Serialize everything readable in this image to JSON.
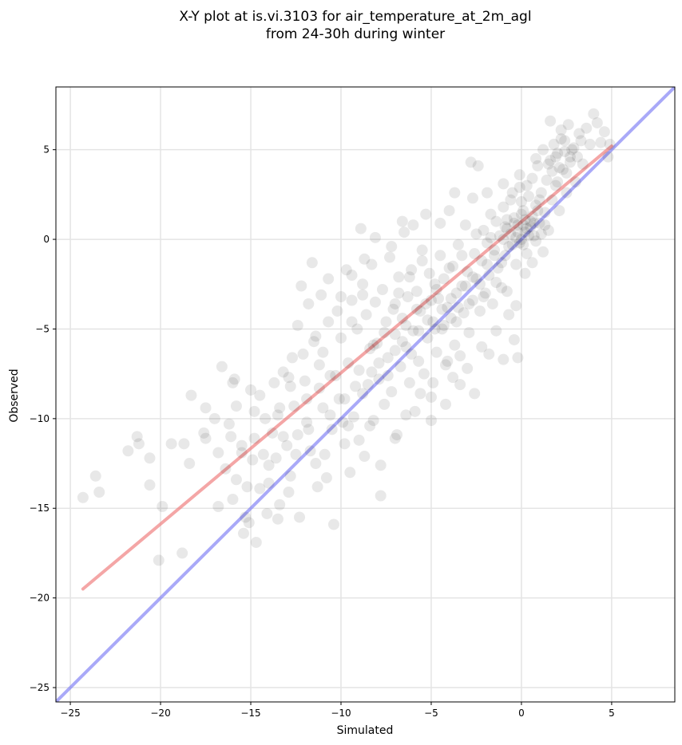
{
  "chart_data": {
    "type": "scatter",
    "title_line1": "X-Y plot at is.vi.3103 for air_temperature_at_2m_agl",
    "title_line2": "from 24-30h during winter",
    "xlabel": "Simulated",
    "ylabel": "Observed",
    "xlim": [
      -25.8,
      8.5
    ],
    "ylim": [
      -25.8,
      8.5
    ],
    "xticks": [
      -25,
      -20,
      -15,
      -10,
      -5,
      0,
      5
    ],
    "yticks": [
      -25,
      -20,
      -15,
      -10,
      -5,
      0,
      5
    ],
    "xtick_labels": [
      "−25",
      "−20",
      "−15",
      "−10",
      "−5",
      "0",
      "5"
    ],
    "ytick_labels": [
      "−25",
      "−20",
      "−15",
      "−10",
      "−5",
      "0",
      "5"
    ],
    "grid": true,
    "points_color": "#000000",
    "points_opacity": 0.09,
    "fit_line": {
      "color": "#f08080",
      "x": [
        -24.3,
        5.0
      ],
      "y": [
        -19.5,
        5.2
      ]
    },
    "identity_line": {
      "color": "#7b7bf5",
      "x": [
        -25.8,
        8.5
      ],
      "y": [
        -25.8,
        8.5
      ]
    },
    "points": [
      [
        -24.3,
        -14.4
      ],
      [
        -23.6,
        -13.2
      ],
      [
        -23.4,
        -14.1
      ],
      [
        -21.8,
        -11.8
      ],
      [
        -21.3,
        -11.0
      ],
      [
        -21.2,
        -11.4
      ],
      [
        -20.6,
        -12.2
      ],
      [
        -20.6,
        -13.7
      ],
      [
        -20.1,
        -17.9
      ],
      [
        -19.9,
        -14.9
      ],
      [
        -19.4,
        -11.4
      ],
      [
        -18.8,
        -17.5
      ],
      [
        -18.7,
        -11.4
      ],
      [
        -18.4,
        -12.5
      ],
      [
        -18.3,
        -8.7
      ],
      [
        -17.6,
        -10.8
      ],
      [
        -17.5,
        -11.1
      ],
      [
        -17.0,
        -10.0
      ],
      [
        -16.8,
        -11.9
      ],
      [
        -16.8,
        -14.9
      ],
      [
        -16.6,
        -7.1
      ],
      [
        -16.1,
        -11.0
      ],
      [
        -16.0,
        -8.0
      ],
      [
        -15.9,
        -7.8
      ],
      [
        -15.8,
        -9.3
      ],
      [
        -15.5,
        -11.5
      ],
      [
        -15.4,
        -16.4
      ],
      [
        -15.3,
        -15.5
      ],
      [
        -15.1,
        -15.8
      ],
      [
        -15.0,
        -8.4
      ],
      [
        -14.8,
        -11.1
      ],
      [
        -14.7,
        -16.9
      ],
      [
        -14.5,
        -8.7
      ],
      [
        -14.3,
        -12.0
      ],
      [
        -14.1,
        -15.3
      ],
      [
        -14.0,
        -13.6
      ],
      [
        -13.8,
        -10.8
      ],
      [
        -13.6,
        -12.2
      ],
      [
        -13.5,
        -9.8
      ],
      [
        -13.4,
        -14.8
      ],
      [
        -13.2,
        -7.4
      ],
      [
        -13.0,
        -11.5
      ],
      [
        -12.8,
        -13.2
      ],
      [
        -12.7,
        -6.6
      ],
      [
        -12.6,
        -9.3
      ],
      [
        -12.4,
        -4.8
      ],
      [
        -12.3,
        -15.5
      ],
      [
        -12.2,
        -2.6
      ],
      [
        -12.0,
        -7.9
      ],
      [
        -11.9,
        -10.2
      ],
      [
        -11.8,
        -3.6
      ],
      [
        -11.6,
        -1.3
      ],
      [
        -11.5,
        -5.7
      ],
      [
        -11.4,
        -12.5
      ],
      [
        -11.2,
        -8.3
      ],
      [
        -11.1,
        -3.1
      ],
      [
        -11.0,
        -6.3
      ],
      [
        -10.8,
        -13.3
      ],
      [
        -10.7,
        -2.2
      ],
      [
        -10.6,
        -7.6
      ],
      [
        -10.5,
        -10.6
      ],
      [
        -10.4,
        -15.9
      ],
      [
        -10.2,
        -4.0
      ],
      [
        -10.1,
        -8.9
      ],
      [
        -10.0,
        -5.5
      ],
      [
        -9.8,
        -11.4
      ],
      [
        -9.7,
        -1.7
      ],
      [
        -9.6,
        -6.9
      ],
      [
        -9.5,
        -13.0
      ],
      [
        -9.4,
        -3.4
      ],
      [
        -9.3,
        -9.9
      ],
      [
        -9.1,
        -5.0
      ],
      [
        -9.0,
        -7.3
      ],
      [
        -8.9,
        0.6
      ],
      [
        -8.8,
        -2.5
      ],
      [
        -8.7,
        -12.1
      ],
      [
        -8.6,
        -4.2
      ],
      [
        -8.5,
        -8.1
      ],
      [
        -8.4,
        -6.1
      ],
      [
        -8.3,
        -1.4
      ],
      [
        -8.2,
        -10.1
      ],
      [
        -8.1,
        -3.5
      ],
      [
        -8.0,
        -5.8
      ],
      [
        -7.9,
        -7.8
      ],
      [
        -7.8,
        -14.3
      ],
      [
        -7.7,
        -2.8
      ],
      [
        -7.6,
        -9.2
      ],
      [
        -7.5,
        -4.6
      ],
      [
        -7.4,
        -6.6
      ],
      [
        -7.3,
        -1.0
      ],
      [
        -7.2,
        -8.5
      ],
      [
        -7.1,
        -3.9
      ],
      [
        -7.0,
        -5.3
      ],
      [
        -6.9,
        -10.9
      ],
      [
        -6.8,
        -2.1
      ],
      [
        -6.7,
        -7.1
      ],
      [
        -6.6,
        -4.4
      ],
      [
        -6.5,
        0.4
      ],
      [
        -6.4,
        -6.0
      ],
      [
        -6.3,
        -3.2
      ],
      [
        -6.2,
        -8.0
      ],
      [
        -6.1,
        -1.7
      ],
      [
        -6.0,
        -5.1
      ],
      [
        -5.9,
        -9.6
      ],
      [
        -5.8,
        -2.9
      ],
      [
        -5.7,
        -6.8
      ],
      [
        -5.6,
        -4.0
      ],
      [
        -5.5,
        -0.6
      ],
      [
        -5.4,
        -7.5
      ],
      [
        -5.3,
        -3.6
      ],
      [
        -5.2,
        -5.5
      ],
      [
        -5.1,
        -1.9
      ],
      [
        -5.0,
        -8.8
      ],
      [
        -4.9,
        -4.6
      ],
      [
        -4.8,
        -2.5
      ],
      [
        -4.7,
        -6.3
      ],
      [
        -4.6,
        -3.3
      ],
      [
        -4.5,
        -0.9
      ],
      [
        -4.4,
        -5.0
      ],
      [
        -4.3,
        -2.2
      ],
      [
        -4.2,
        -7.0
      ],
      [
        -4.1,
        -3.8
      ],
      [
        -4.0,
        1.6
      ],
      [
        -3.9,
        -4.4
      ],
      [
        -3.8,
        -1.5
      ],
      [
        -3.7,
        -5.9
      ],
      [
        -3.6,
        -3.0
      ],
      [
        -3.5,
        -0.3
      ],
      [
        -3.4,
        -6.5
      ],
      [
        -3.3,
        -2.6
      ],
      [
        -3.2,
        -4.1
      ],
      [
        -3.1,
        0.8
      ],
      [
        -3.0,
        -1.8
      ],
      [
        -2.9,
        -5.2
      ],
      [
        -2.8,
        4.3
      ],
      [
        -2.7,
        -3.4
      ],
      [
        -2.6,
        -0.8
      ],
      [
        -2.5,
        -2.2
      ],
      [
        -2.4,
        4.1
      ],
      [
        -2.3,
        -4.0
      ],
      [
        -2.2,
        -1.2
      ],
      [
        -2.1,
        0.5
      ],
      [
        -2.0,
        -3.0
      ],
      [
        -1.9,
        -0.2
      ],
      [
        -1.8,
        -2.0
      ],
      [
        -1.7,
        1.4
      ],
      [
        -1.6,
        -3.6
      ],
      [
        -1.5,
        -0.6
      ],
      [
        -1.4,
        1.0
      ],
      [
        -1.3,
        -1.6
      ],
      [
        -1.2,
        0.2
      ],
      [
        -1.1,
        -2.7
      ],
      [
        -1.0,
        1.8
      ],
      [
        -0.9,
        -0.9
      ],
      [
        -0.8,
        0.6
      ],
      [
        -0.7,
        -4.2
      ],
      [
        -0.6,
        2.2
      ],
      [
        -0.5,
        -0.3
      ],
      [
        -0.4,
        1.2
      ],
      [
        -0.3,
        -1.4
      ],
      [
        -0.2,
        0.8
      ],
      [
        -0.1,
        2.9
      ],
      [
        0.0,
        0.0
      ],
      [
        0.1,
        1.6
      ],
      [
        0.2,
        0.4
      ],
      [
        0.3,
        -0.8
      ],
      [
        0.4,
        2.4
      ],
      [
        0.5,
        1.0
      ],
      [
        0.6,
        3.4
      ],
      [
        0.7,
        0.2
      ],
      [
        0.8,
        1.9
      ],
      [
        0.9,
        4.1
      ],
      [
        1.0,
        0.9
      ],
      [
        1.1,
        2.6
      ],
      [
        1.2,
        5.0
      ],
      [
        1.3,
        1.5
      ],
      [
        1.4,
        3.3
      ],
      [
        1.5,
        0.5
      ],
      [
        1.6,
        4.4
      ],
      [
        1.7,
        2.2
      ],
      [
        1.8,
        5.3
      ],
      [
        1.9,
        3.0
      ],
      [
        2.0,
        4.8
      ],
      [
        2.1,
        1.6
      ],
      [
        2.2,
        6.1
      ],
      [
        2.3,
        3.9
      ],
      [
        2.4,
        5.5
      ],
      [
        2.5,
        2.6
      ],
      [
        2.6,
        6.4
      ],
      [
        2.7,
        4.6
      ],
      [
        2.8,
        5.0
      ],
      [
        3.0,
        3.2
      ],
      [
        3.2,
        5.9
      ],
      [
        3.4,
        4.2
      ],
      [
        3.6,
        6.2
      ],
      [
        3.8,
        5.3
      ],
      [
        4.0,
        7.0
      ],
      [
        4.2,
        6.5
      ],
      [
        4.4,
        5.4
      ],
      [
        4.6,
        6.0
      ],
      [
        4.8,
        4.6
      ],
      [
        4.9,
        5.3
      ],
      [
        -13.2,
        -11.0
      ],
      [
        -12.5,
        -12.0
      ],
      [
        -11.8,
        -10.6
      ],
      [
        -11.0,
        -9.4
      ],
      [
        -10.6,
        -9.8
      ],
      [
        -9.8,
        -8.9
      ],
      [
        -9.2,
        -8.2
      ],
      [
        -8.8,
        -8.6
      ],
      [
        -8.3,
        -7.4
      ],
      [
        -7.9,
        -6.9
      ],
      [
        -7.4,
        -7.6
      ],
      [
        -7.0,
        -6.2
      ],
      [
        -6.6,
        -5.7
      ],
      [
        -6.1,
        -6.4
      ],
      [
        -5.7,
        -5.1
      ],
      [
        -5.2,
        -4.5
      ],
      [
        -4.8,
        -5.0
      ],
      [
        -4.4,
        -3.9
      ],
      [
        -3.9,
        -3.3
      ],
      [
        -3.5,
        -3.8
      ],
      [
        -3.1,
        -2.6
      ],
      [
        -2.7,
        -2.1
      ],
      [
        -2.3,
        -2.5
      ],
      [
        -1.9,
        -1.4
      ],
      [
        -1.5,
        -0.9
      ],
      [
        -1.1,
        -1.3
      ],
      [
        -0.7,
        -0.4
      ],
      [
        -0.3,
        0.1
      ],
      [
        0.1,
        -0.3
      ],
      [
        0.5,
        0.7
      ],
      [
        0.2,
        1.1
      ],
      [
        -0.2,
        0.4
      ],
      [
        0.4,
        0.2
      ],
      [
        0.6,
        1.3
      ],
      [
        -0.4,
        0.9
      ],
      [
        0.0,
        1.4
      ],
      [
        0.3,
        0.6
      ],
      [
        -0.1,
        -0.2
      ],
      [
        0.7,
        0.9
      ],
      [
        0.1,
        0.8
      ],
      [
        -0.6,
        0.3
      ],
      [
        0.9,
        1.6
      ],
      [
        1.1,
        0.3
      ],
      [
        -0.8,
        1.1
      ],
      [
        0.8,
        -0.1
      ],
      [
        1.3,
        0.8
      ],
      [
        -1.0,
        0.0
      ],
      [
        0.0,
        2.1
      ],
      [
        2.1,
        4.0
      ],
      [
        2.4,
        4.9
      ],
      [
        1.9,
        4.6
      ],
      [
        2.7,
        4.3
      ],
      [
        2.2,
        5.6
      ],
      [
        1.7,
        3.8
      ],
      [
        2.9,
        5.1
      ],
      [
        2.5,
        3.7
      ],
      [
        3.1,
        4.6
      ],
      [
        1.5,
        4.2
      ],
      [
        2.0,
        3.2
      ],
      [
        3.3,
        5.5
      ],
      [
        -16.0,
        -14.5
      ],
      [
        -15.2,
        -13.8
      ],
      [
        -14.5,
        -13.9
      ],
      [
        -14.0,
        -12.6
      ],
      [
        -13.5,
        -15.6
      ],
      [
        -12.9,
        -14.1
      ],
      [
        -12.4,
        -10.9
      ],
      [
        -11.7,
        -11.8
      ],
      [
        -11.3,
        -13.8
      ],
      [
        -10.9,
        -12.0
      ],
      [
        -9.6,
        -10.4
      ],
      [
        -9.0,
        -11.2
      ],
      [
        -17.5,
        -9.4
      ],
      [
        -16.2,
        -10.3
      ],
      [
        -14.8,
        -9.6
      ],
      [
        -13.7,
        -8.0
      ],
      [
        -12.9,
        -7.7
      ],
      [
        -12.1,
        -6.4
      ],
      [
        -11.4,
        -5.4
      ],
      [
        -10.7,
        -4.6
      ],
      [
        -10.0,
        -3.2
      ],
      [
        -9.4,
        -2.0
      ],
      [
        -8.7,
        -1.1
      ],
      [
        -8.1,
        0.1
      ],
      [
        -7.2,
        -0.4
      ],
      [
        -6.6,
        1.0
      ],
      [
        -6.0,
        0.8
      ],
      [
        -5.3,
        1.4
      ],
      [
        -4.5,
        0.9
      ],
      [
        -3.7,
        2.6
      ],
      [
        -2.7,
        2.3
      ],
      [
        -1.9,
        2.6
      ],
      [
        -1.0,
        3.1
      ],
      [
        -0.1,
        3.6
      ],
      [
        0.8,
        4.5
      ],
      [
        1.6,
        6.6
      ],
      [
        -5.0,
        -10.1
      ],
      [
        -4.2,
        -9.2
      ],
      [
        -3.4,
        -8.1
      ],
      [
        -2.6,
        -8.6
      ],
      [
        -1.8,
        -6.4
      ],
      [
        -1.0,
        -6.7
      ],
      [
        -0.4,
        -5.6
      ],
      [
        -0.2,
        -6.6
      ],
      [
        -1.4,
        -5.1
      ],
      [
        -2.2,
        -6.0
      ],
      [
        -3.0,
        -7.2
      ],
      [
        -3.8,
        -7.7
      ],
      [
        -7.8,
        -12.6
      ],
      [
        -7.0,
        -11.1
      ],
      [
        -6.4,
        -9.8
      ],
      [
        -5.6,
        -8.6
      ],
      [
        -4.9,
        -8.0
      ],
      [
        -4.1,
        -6.8
      ],
      [
        -8.4,
        -10.4
      ],
      [
        -9.9,
        -10.2
      ],
      [
        -10.3,
        -7.6
      ],
      [
        -11.2,
        -7.0
      ],
      [
        -11.9,
        -8.9
      ],
      [
        -12.8,
        -8.2
      ],
      [
        -13.4,
        -9.4
      ],
      [
        -14.2,
        -10.0
      ],
      [
        -15.5,
        -11.9
      ],
      [
        -16.4,
        -12.8
      ],
      [
        -15.8,
        -13.4
      ],
      [
        -14.9,
        -12.3
      ],
      [
        -6.8,
        -3.0
      ],
      [
        -6.2,
        -2.1
      ],
      [
        -5.5,
        -1.2
      ],
      [
        -4.7,
        -2.8
      ],
      [
        -4.0,
        -1.6
      ],
      [
        -3.3,
        -0.9
      ],
      [
        -2.5,
        0.3
      ],
      [
        -1.7,
        0.1
      ],
      [
        -0.9,
        0.7
      ],
      [
        -0.5,
        2.6
      ],
      [
        0.3,
        3.0
      ],
      [
        1.0,
        2.2
      ],
      [
        -9.4,
        -4.6
      ],
      [
        -8.8,
        -3.1
      ],
      [
        -8.2,
        -5.9
      ],
      [
        -7.6,
        -5.2
      ],
      [
        -7.0,
        -3.6
      ],
      [
        -6.4,
        -4.8
      ],
      [
        -5.8,
        -3.9
      ],
      [
        -5.0,
        -3.4
      ],
      [
        -4.3,
        -4.8
      ],
      [
        -3.6,
        -4.6
      ],
      [
        -2.9,
        -3.6
      ],
      [
        -2.1,
        -3.2
      ],
      [
        -1.4,
        -2.4
      ],
      [
        -0.8,
        -2.9
      ],
      [
        -0.3,
        -3.7
      ],
      [
        0.2,
        -1.9
      ],
      [
        0.6,
        -1.3
      ],
      [
        1.2,
        -0.7
      ]
    ]
  }
}
